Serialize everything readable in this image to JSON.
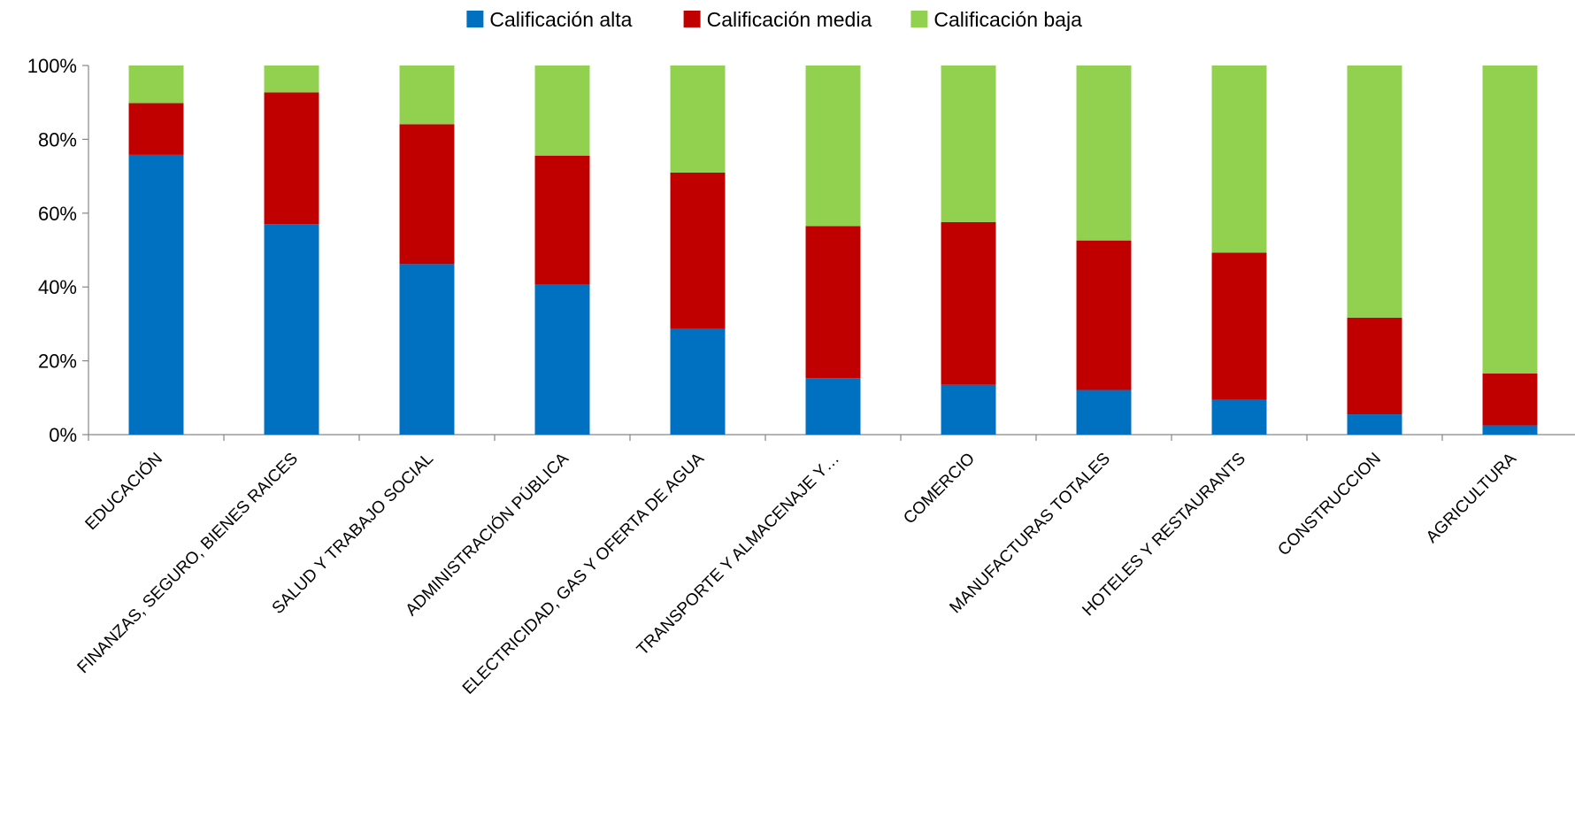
{
  "chart_data": {
    "type": "bar",
    "stacked": "percent",
    "title": "",
    "xlabel": "",
    "ylabel": "",
    "ylim": [
      0,
      100
    ],
    "yticks": [
      0,
      20,
      40,
      60,
      80,
      100
    ],
    "ytick_suffix": "%",
    "legend_position": "top-center",
    "grid": false,
    "categories": [
      "EDUCACIÓN",
      "FINANZAS, SEGURO, BIENES RAICES",
      "SALUD Y TRABAJO SOCIAL",
      "ADMINISTRACIÓN PÚBLICA",
      "ELECTRICIDAD, GAS Y OFERTA DE AGUA",
      "TRANSPORTE Y ALMACENAJE Y…",
      "COMERCIO",
      "MANUFACTURAS TOTALES",
      "HOTELES Y RESTAURANTS",
      "CONSTRUCCION",
      "AGRICULTURA"
    ],
    "series": [
      {
        "name": "Calificación alta",
        "color": "#0070C0",
        "values": [
          75.8,
          57.0,
          46.2,
          40.6,
          28.6,
          15.3,
          13.5,
          12.1,
          9.4,
          5.5,
          2.5
        ]
      },
      {
        "name": "Calificación media",
        "color": "#C00000",
        "values": [
          14.0,
          35.7,
          37.9,
          35.0,
          42.4,
          41.2,
          44.1,
          40.5,
          39.9,
          26.2,
          14.1
        ]
      },
      {
        "name": "Calificación baja",
        "color": "#92D050",
        "values": [
          10.2,
          7.3,
          15.9,
          24.4,
          29.0,
          43.5,
          42.4,
          47.4,
          50.7,
          68.3,
          83.4
        ]
      }
    ]
  }
}
